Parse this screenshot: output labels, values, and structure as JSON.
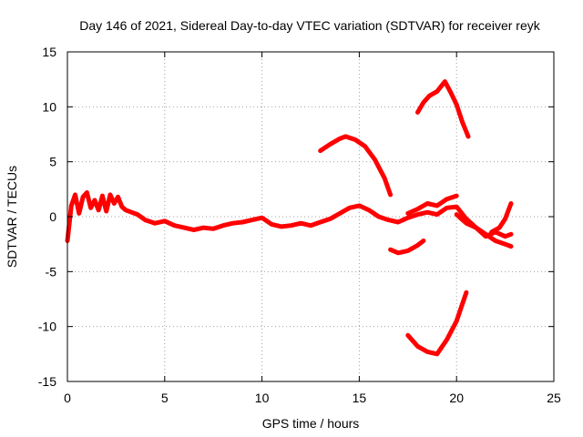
{
  "chart_data": {
    "type": "line",
    "title": "Day 146 of 2021, Sidereal Day-to-day VTEC variation (SDTVAR) for receiver reyk",
    "xlabel": "GPS time / hours",
    "ylabel": "SDTVAR / TECUs",
    "xlim": [
      0,
      25
    ],
    "ylim": [
      -15,
      15
    ],
    "xticks": [
      0,
      5,
      10,
      15,
      20,
      25
    ],
    "yticks": [
      -15,
      -10,
      -5,
      0,
      5,
      10,
      15
    ],
    "xtick_labels": [
      "0",
      "5",
      "10",
      "15",
      "20",
      "25"
    ],
    "ytick_labels": [
      "-15",
      "-10",
      "-5",
      "0",
      "5",
      "10",
      "15"
    ],
    "grid": true,
    "color": "#ff0000",
    "series": [
      {
        "name": "main-trace",
        "x": [
          0,
          0.2,
          0.4,
          0.6,
          0.8,
          1,
          1.2,
          1.4,
          1.6,
          1.8,
          2,
          2.2,
          2.4,
          2.6,
          2.8,
          3,
          3.3,
          3.6,
          4,
          4.5,
          5,
          5.5,
          6,
          6.5,
          7,
          7.5,
          8,
          8.5,
          9,
          9.5,
          10,
          10.5,
          11,
          11.5,
          12,
          12.5,
          13,
          13.5,
          14,
          14.5,
          15,
          15.5,
          16,
          16.5,
          17,
          17.5,
          18,
          18.5,
          19,
          19.5,
          20,
          20.5,
          21,
          21.5,
          22,
          22.5,
          22.8
        ],
        "y": [
          -2.2,
          1,
          2,
          0.3,
          1.8,
          2.2,
          0.8,
          1.5,
          0.6,
          1.9,
          0.5,
          2,
          1.2,
          1.8,
          0.9,
          0.6,
          0.4,
          0.2,
          -0.3,
          -0.6,
          -0.4,
          -0.8,
          -1.0,
          -1.2,
          -1.0,
          -1.1,
          -0.8,
          -0.6,
          -0.5,
          -0.3,
          -0.1,
          -0.7,
          -0.9,
          -0.8,
          -0.6,
          -0.8,
          -0.5,
          -0.2,
          0.3,
          0.8,
          1.0,
          0.6,
          0.0,
          -0.3,
          -0.5,
          -0.1,
          0.2,
          0.4,
          0.2,
          0.8,
          0.9,
          -0.2,
          -1.0,
          -1.8,
          -1.4,
          -1.8,
          -1.6
        ]
      },
      {
        "name": "upper-mid-trace",
        "x": [
          17.5,
          18,
          18.5,
          19,
          19.5,
          20
        ],
        "y": [
          0.3,
          0.7,
          1.2,
          1.0,
          1.6,
          1.9
        ]
      },
      {
        "name": "lower-mid-trace",
        "x": [
          20,
          20.5,
          21,
          21.5,
          22,
          22.5,
          22.8
        ],
        "y": [
          0.2,
          -0.6,
          -1.0,
          -1.6,
          -2.2,
          -2.5,
          -2.7
        ]
      },
      {
        "name": "right-rise-trace",
        "x": [
          21.8,
          22.2,
          22.5,
          22.8
        ],
        "y": [
          -1.4,
          -1.0,
          -0.2,
          1.2
        ]
      },
      {
        "name": "arc-upper",
        "x": [
          13,
          13.5,
          14,
          14.3,
          14.8,
          15.3,
          15.8,
          16.3,
          16.6
        ],
        "y": [
          6.0,
          6.6,
          7.1,
          7.3,
          7.0,
          6.4,
          5.2,
          3.5,
          2.0
        ]
      },
      {
        "name": "arc-top",
        "x": [
          18,
          18.3,
          18.6,
          19,
          19.4,
          19.7,
          20,
          20.3,
          20.6
        ],
        "y": [
          9.5,
          10.4,
          11.0,
          11.4,
          12.3,
          11.3,
          10.2,
          8.6,
          7.3
        ]
      },
      {
        "name": "low-segment",
        "x": [
          16.6,
          17,
          17.5,
          18,
          18.3
        ],
        "y": [
          -3.0,
          -3.3,
          -3.1,
          -2.6,
          -2.2
        ]
      },
      {
        "name": "arc-bottom",
        "x": [
          17.5,
          18,
          18.5,
          19,
          19.5,
          20,
          20.5
        ],
        "y": [
          -10.8,
          -11.8,
          -12.3,
          -12.5,
          -11.2,
          -9.5,
          -6.9
        ]
      }
    ]
  }
}
